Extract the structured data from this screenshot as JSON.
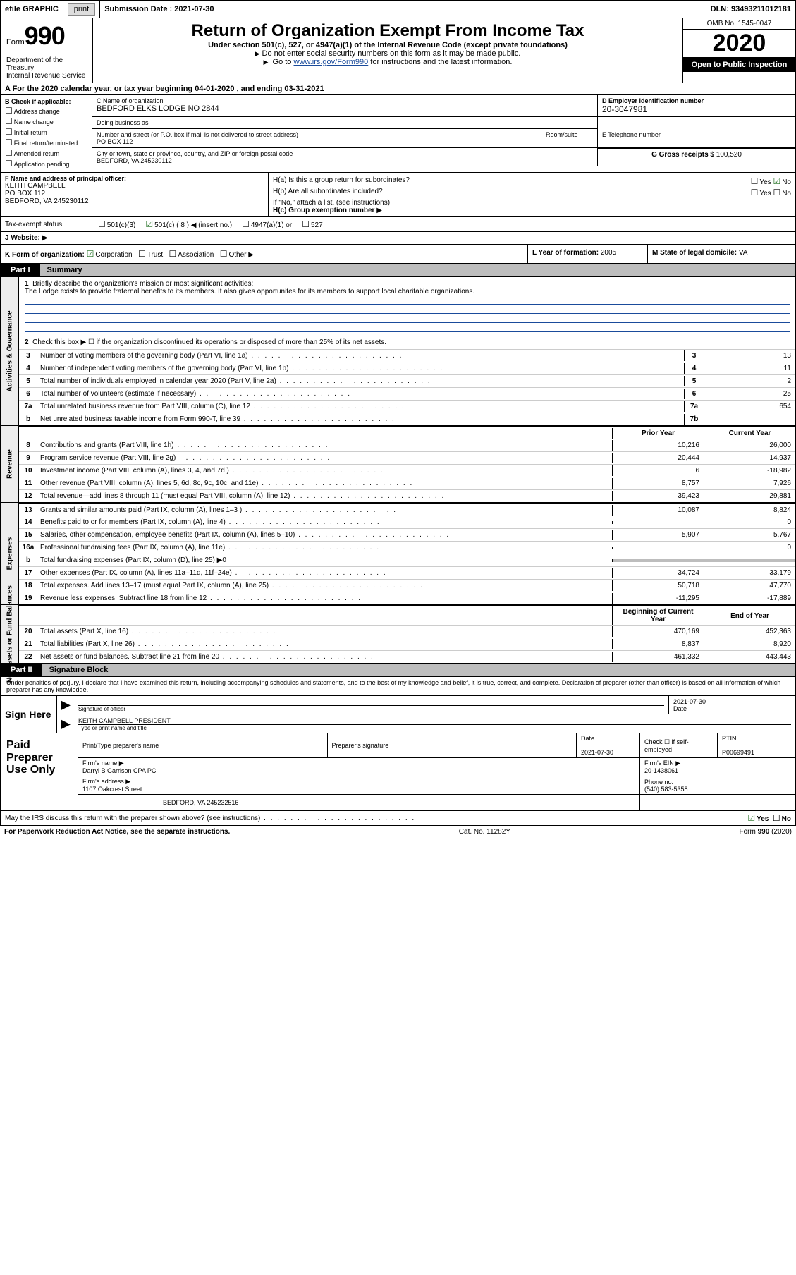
{
  "toolbar": {
    "efile": "efile GRAPHIC",
    "print_btn": "print",
    "sub_label": "Submission Date : ",
    "sub_date": "2021-07-30",
    "dln": "DLN: 93493211012181"
  },
  "header": {
    "form_word": "Form",
    "form_num": "990",
    "dept": "Department of the Treasury\nInternal Revenue Service",
    "title": "Return of Organization Exempt From Income Tax",
    "sub": "Under section 501(c), 527, or 4947(a)(1) of the Internal Revenue Code (except private foundations)",
    "note1": "Do not enter social security numbers on this form as it may be made public.",
    "note2_pre": "Go to ",
    "note2_link": "www.irs.gov/Form990",
    "note2_post": " for instructions and the latest information.",
    "omb": "OMB No. 1545-0047",
    "year": "2020",
    "open_public": "Open to Public Inspection"
  },
  "lineA": "A  For the 2020 calendar year, or tax year beginning 04-01-2020     , and ending 03-31-2021",
  "b": {
    "label": "B Check if applicable:",
    "opts": [
      "Address change",
      "Name change",
      "Initial return",
      "Final return/terminated",
      "Amended return",
      "Application pending"
    ]
  },
  "c": {
    "name_label": "C Name of organization",
    "name": "BEDFORD ELKS LODGE NO 2844",
    "dba_label": "Doing business as",
    "dba": "",
    "addr_label": "Number and street (or P.O. box if mail is not delivered to street address)",
    "room_label": "Room/suite",
    "addr": "PO BOX 112",
    "city_label": "City or town, state or province, country, and ZIP or foreign postal code",
    "city": "BEDFORD, VA  245230112"
  },
  "d": {
    "label": "D Employer identification number",
    "val": "20-3047981"
  },
  "e": {
    "label": "E Telephone number",
    "val": ""
  },
  "g": {
    "label": "G Gross receipts $",
    "val": "100,520"
  },
  "f": {
    "label": "F  Name and address of principal officer:",
    "name": "KEITH CAMPBELL",
    "addr1": "PO BOX 112",
    "addr2": "BEDFORD, VA  245230112"
  },
  "h": {
    "a": "H(a)  Is this a group return for subordinates?",
    "a_yes": "Yes",
    "a_no": "No",
    "b": "H(b)  Are all subordinates included?",
    "b_yes": "Yes",
    "b_no": "No",
    "b_note": "If \"No,\" attach a list. (see instructions)",
    "c": "H(c)  Group exemption number"
  },
  "i": {
    "label": "Tax-exempt status:",
    "o1": "501(c)(3)",
    "o2": "501(c) ( 8 ) ◀ (insert no.)",
    "o3": "4947(a)(1) or",
    "o4": "527"
  },
  "j": {
    "label": "J   Website: ▶"
  },
  "k": {
    "label": "K Form of organization:",
    "o1": "Corporation",
    "o2": "Trust",
    "o3": "Association",
    "o4": "Other ▶"
  },
  "l": {
    "label": "L Year of formation:",
    "val": "2005"
  },
  "m": {
    "label": "M State of legal domicile:",
    "val": "VA"
  },
  "part1": {
    "tab": "Part I",
    "title": "Summary"
  },
  "part2": {
    "tab": "Part II",
    "title": "Signature Block"
  },
  "sections": {
    "ag": "Activities & Governance",
    "rev": "Revenue",
    "exp": "Expenses",
    "na": "Net Assets or Fund Balances"
  },
  "p1": {
    "l1": "Briefly describe the organization's mission or most significant activities:",
    "l1_text": "The Lodge exists to provide fraternal benefits to its members. It also gives opportunites for its members to support local charitable organizations.",
    "l2": "Check this box ▶ ☐  if the organization discontinued its operations or disposed of more than 25% of its net assets.",
    "rows_single": [
      {
        "n": "3",
        "label": "Number of voting members of the governing body (Part VI, line 1a)",
        "box": "3",
        "val": "13"
      },
      {
        "n": "4",
        "label": "Number of independent voting members of the governing body (Part VI, line 1b)",
        "box": "4",
        "val": "11"
      },
      {
        "n": "5",
        "label": "Total number of individuals employed in calendar year 2020 (Part V, line 2a)",
        "box": "5",
        "val": "2"
      },
      {
        "n": "6",
        "label": "Total number of volunteers (estimate if necessary)",
        "box": "6",
        "val": "25"
      },
      {
        "n": "7a",
        "label": "Total unrelated business revenue from Part VIII, column (C), line 12",
        "box": "7a",
        "val": "654"
      },
      {
        "n": "b",
        "label": "Net unrelated business taxable income from Form 990-T, line 39",
        "box": "7b",
        "val": ""
      }
    ],
    "hdr_prior": "Prior Year",
    "hdr_curr": "Current Year",
    "rows_rev": [
      {
        "n": "8",
        "label": "Contributions and grants (Part VIII, line 1h)",
        "p": "10,216",
        "c": "26,000"
      },
      {
        "n": "9",
        "label": "Program service revenue (Part VIII, line 2g)",
        "p": "20,444",
        "c": "14,937"
      },
      {
        "n": "10",
        "label": "Investment income (Part VIII, column (A), lines 3, 4, and 7d )",
        "p": "6",
        "c": "-18,982"
      },
      {
        "n": "11",
        "label": "Other revenue (Part VIII, column (A), lines 5, 6d, 8c, 9c, 10c, and 11e)",
        "p": "8,757",
        "c": "7,926"
      },
      {
        "n": "12",
        "label": "Total revenue—add lines 8 through 11 (must equal Part VIII, column (A), line 12)",
        "p": "39,423",
        "c": "29,881"
      }
    ],
    "rows_exp": [
      {
        "n": "13",
        "label": "Grants and similar amounts paid (Part IX, column (A), lines 1–3 )",
        "p": "10,087",
        "c": "8,824"
      },
      {
        "n": "14",
        "label": "Benefits paid to or for members (Part IX, column (A), line 4)",
        "p": "",
        "c": "0"
      },
      {
        "n": "15",
        "label": "Salaries, other compensation, employee benefits (Part IX, column (A), lines 5–10)",
        "p": "5,907",
        "c": "5,767"
      },
      {
        "n": "16a",
        "label": "Professional fundraising fees (Part IX, column (A), line 11e)",
        "p": "",
        "c": "0"
      },
      {
        "n": "b",
        "label": "Total fundraising expenses (Part IX, column (D), line 25) ▶0",
        "p": "SHADE",
        "c": "SHADE"
      },
      {
        "n": "17",
        "label": "Other expenses (Part IX, column (A), lines 11a–11d, 11f–24e)",
        "p": "34,724",
        "c": "33,179"
      },
      {
        "n": "18",
        "label": "Total expenses. Add lines 13–17 (must equal Part IX, column (A), line 25)",
        "p": "50,718",
        "c": "47,770"
      },
      {
        "n": "19",
        "label": "Revenue less expenses. Subtract line 18 from line 12",
        "p": "-11,295",
        "c": "-17,889"
      }
    ],
    "hdr_beg": "Beginning of Current Year",
    "hdr_end": "End of Year",
    "rows_na": [
      {
        "n": "20",
        "label": "Total assets (Part X, line 16)",
        "p": "470,169",
        "c": "452,363"
      },
      {
        "n": "21",
        "label": "Total liabilities (Part X, line 26)",
        "p": "8,837",
        "c": "8,920"
      },
      {
        "n": "22",
        "label": "Net assets or fund balances. Subtract line 21 from line 20",
        "p": "461,332",
        "c": "443,443"
      }
    ]
  },
  "sig": {
    "decl": "Under penalties of perjury, I declare that I have examined this return, including accompanying schedules and statements, and to the best of my knowledge and belief, it is true, correct, and complete. Declaration of preparer (other than officer) is based on all information of which preparer has any knowledge.",
    "left": "Sign Here",
    "sig_of": "Signature of officer",
    "date_lbl": "Date",
    "date_val": "2021-07-30",
    "name": "KEITH CAMPBELL  PRESIDENT",
    "name_lbl": "Type or print name and title"
  },
  "prep": {
    "left": "Paid Preparer Use Only",
    "r1_c1": "Print/Type preparer's name",
    "r1_c2": "Preparer's signature",
    "r1_c3_lbl": "Date",
    "r1_c3_val": "2021-07-30",
    "r1_c4": "Check ☐ if self-employed",
    "r1_c5_lbl": "PTIN",
    "r1_c5_val": "P00699491",
    "r2_lbl": "Firm's name    ▶",
    "r2_val": "Darryl B Garrison CPA PC",
    "r2_ein_lbl": "Firm's EIN ▶",
    "r2_ein_val": "20-1438061",
    "r3_lbl": "Firm's address ▶",
    "r3_val1": "1107 Oakcrest Street",
    "r3_val2": "BEDFORD, VA  245232516",
    "r3_ph_lbl": "Phone no.",
    "r3_ph_val": "(540) 583-5358"
  },
  "irs": {
    "q": "May the IRS discuss this return with the preparer shown above? (see instructions)",
    "yes": "Yes",
    "no": "No"
  },
  "footer": {
    "left": "For Paperwork Reduction Act Notice, see the separate instructions.",
    "mid": "Cat. No. 11282Y",
    "right": "Form 990 (2020)"
  }
}
